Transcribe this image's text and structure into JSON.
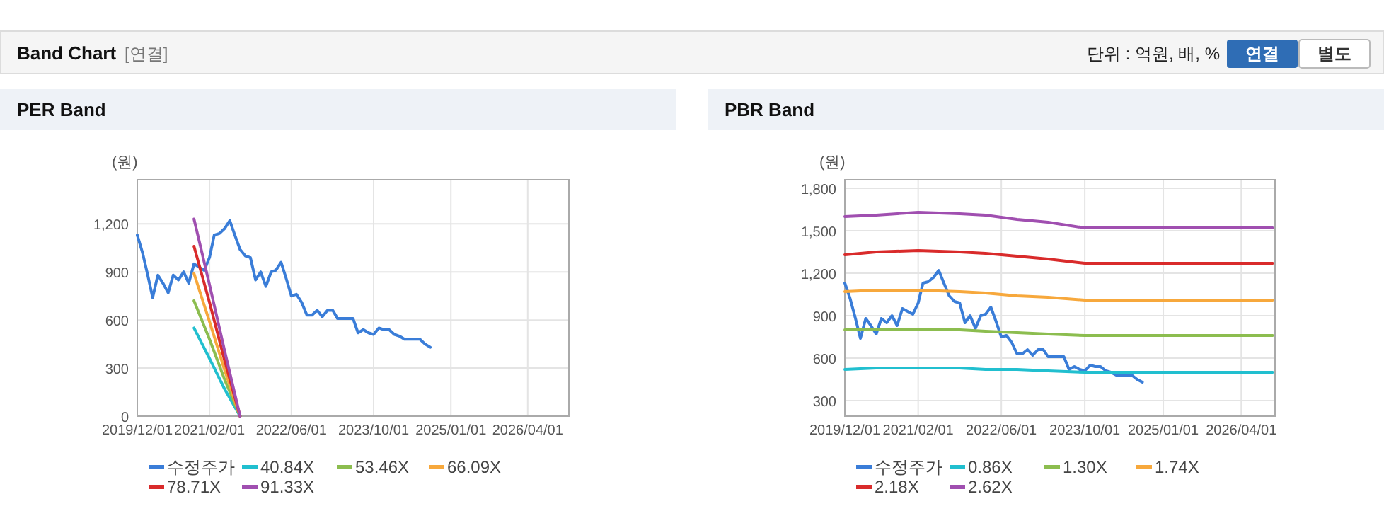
{
  "chart_data": [
    {
      "type": "other",
      "title": "Band Chart",
      "annotations": [
        "[연결]",
        "단위 : 억원, 배, %",
        "연결",
        "별도"
      ]
    },
    {
      "type": "line",
      "title": "PER Band",
      "ylabel": "(원)",
      "grid": true,
      "legend": "bottom",
      "marker": "none",
      "xlim": [
        "2019-12-01",
        "2026-12-01"
      ],
      "xticks": [
        {
          "value": "2019-12-01",
          "label": "2019/12/01"
        },
        {
          "value": "2021-02-01",
          "label": "2021/02/01"
        },
        {
          "value": "2022-06-01",
          "label": "2022/06/01"
        },
        {
          "value": "2023-10-01",
          "label": "2023/10/01"
        },
        {
          "value": "2025-01-01",
          "label": "2025/01/01"
        },
        {
          "value": "2026-04-01",
          "label": "2026/04/01"
        }
      ],
      "ylim": [
        0,
        1475
      ],
      "yticks": [
        0,
        300,
        600,
        900,
        {
          "value": 1200,
          "label": "1,200"
        }
      ],
      "x": [
        "2019-12",
        "2020-01",
        "2020-02",
        "2020-03",
        "2020-04",
        "2020-05",
        "2020-06",
        "2020-07",
        "2020-08",
        "2020-09",
        "2020-10",
        "2020-11",
        "2020-12",
        "2021-01",
        "2021-02",
        "2021-03",
        "2021-04",
        "2021-05",
        "2021-06",
        "2021-07",
        "2021-08",
        "2021-09",
        "2021-10",
        "2021-11",
        "2021-12",
        "2022-01",
        "2022-02",
        "2022-03",
        "2022-04",
        "2022-05",
        "2022-06",
        "2022-07",
        "2022-08",
        "2022-09",
        "2022-10",
        "2022-11",
        "2022-12",
        "2023-01",
        "2023-02",
        "2023-03",
        "2023-04",
        "2023-05",
        "2023-06",
        "2023-07",
        "2023-08",
        "2023-09",
        "2023-10",
        "2023-11",
        "2023-12",
        "2024-01",
        "2024-02",
        "2024-03",
        "2024-04",
        "2024-05",
        "2024-06",
        "2024-07",
        "2024-08",
        "2024-09"
      ],
      "series": [
        {
          "name": "수정주가",
          "color": "#3a7dd8",
          "values": [
            1130,
            1020,
            880,
            740,
            880,
            830,
            770,
            880,
            850,
            900,
            830,
            950,
            930,
            910,
            990,
            1130,
            1140,
            1170,
            1220,
            1130,
            1040,
            1000,
            990,
            850,
            900,
            810,
            900,
            910,
            960,
            860,
            750,
            760,
            710,
            630,
            630,
            660,
            620,
            660,
            660,
            610,
            610,
            610,
            610,
            520,
            540,
            520,
            510,
            550,
            540,
            540,
            510,
            500,
            480,
            480,
            480,
            480,
            450,
            430
          ]
        },
        {
          "name": "40.84X",
          "color": "#21bfcf",
          "x": [
            "2020-11",
            "2021-02",
            "2021-05",
            "2021-08"
          ],
          "values": [
            550,
            360,
            170,
            0
          ]
        },
        {
          "name": "53.46X",
          "color": "#8cbd4f",
          "x": [
            "2020-11",
            "2021-02",
            "2021-05",
            "2021-08"
          ],
          "values": [
            720,
            480,
            230,
            0
          ]
        },
        {
          "name": "66.09X",
          "color": "#f7a83c",
          "x": [
            "2020-11",
            "2021-02",
            "2021-05",
            "2021-08"
          ],
          "values": [
            890,
            590,
            290,
            0
          ]
        },
        {
          "name": "78.71X",
          "color": "#d92b2b",
          "x": [
            "2020-11",
            "2021-02",
            "2021-05",
            "2021-08"
          ],
          "values": [
            1060,
            710,
            350,
            0
          ]
        },
        {
          "name": "91.33X",
          "color": "#a04fb0",
          "x": [
            "2020-11",
            "2021-02",
            "2021-05",
            "2021-08"
          ],
          "values": [
            1230,
            820,
            410,
            0
          ]
        }
      ]
    },
    {
      "type": "line",
      "title": "PBR Band",
      "ylabel": "(원)",
      "grid": true,
      "legend": "bottom",
      "marker": "none",
      "xlim": [
        "2019-12-01",
        "2026-10-15"
      ],
      "xticks": [
        {
          "value": "2019-12-01",
          "label": "2019/12/01"
        },
        {
          "value": "2021-02-01",
          "label": "2021/02/01"
        },
        {
          "value": "2022-06-01",
          "label": "2022/06/01"
        },
        {
          "value": "2023-10-01",
          "label": "2023/10/01"
        },
        {
          "value": "2025-01-01",
          "label": "2025/01/01"
        },
        {
          "value": "2026-04-01",
          "label": "2026/04/01"
        }
      ],
      "ylim": [
        190,
        1860
      ],
      "yticks": [
        300,
        600,
        900,
        {
          "value": 1200,
          "label": "1,200"
        },
        {
          "value": 1500,
          "label": "1,500"
        },
        {
          "value": 1800,
          "label": "1,800"
        }
      ],
      "x": [
        "2019-12",
        "2020-01",
        "2020-02",
        "2020-03",
        "2020-04",
        "2020-05",
        "2020-06",
        "2020-07",
        "2020-08",
        "2020-09",
        "2020-10",
        "2020-11",
        "2020-12",
        "2021-01",
        "2021-02",
        "2021-03",
        "2021-04",
        "2021-05",
        "2021-06",
        "2021-07",
        "2021-08",
        "2021-09",
        "2021-10",
        "2021-11",
        "2021-12",
        "2022-01",
        "2022-02",
        "2022-03",
        "2022-04",
        "2022-05",
        "2022-06",
        "2022-07",
        "2022-08",
        "2022-09",
        "2022-10",
        "2022-11",
        "2022-12",
        "2023-01",
        "2023-02",
        "2023-03",
        "2023-04",
        "2023-05",
        "2023-06",
        "2023-07",
        "2023-08",
        "2023-09",
        "2023-10",
        "2023-11",
        "2023-12",
        "2024-01",
        "2024-02",
        "2024-03",
        "2024-04",
        "2024-05",
        "2024-06",
        "2024-07",
        "2024-08",
        "2024-09"
      ],
      "series": [
        {
          "name": "수정주가",
          "color": "#3a7dd8",
          "values": [
            1130,
            1020,
            880,
            740,
            880,
            830,
            770,
            880,
            850,
            900,
            830,
            950,
            930,
            910,
            990,
            1130,
            1140,
            1170,
            1220,
            1130,
            1040,
            1000,
            990,
            850,
            900,
            810,
            900,
            910,
            960,
            860,
            750,
            760,
            710,
            630,
            630,
            660,
            620,
            660,
            660,
            610,
            610,
            610,
            610,
            520,
            540,
            520,
            510,
            550,
            540,
            540,
            510,
            500,
            480,
            480,
            480,
            480,
            450,
            430
          ]
        },
        {
          "name": "0.86X",
          "color": "#21bfcf",
          "x": [
            "2019-12",
            "2020-06",
            "2021-02",
            "2021-10",
            "2022-03",
            "2022-09",
            "2023-03",
            "2023-10",
            "2026-10"
          ],
          "values": [
            520,
            530,
            530,
            530,
            520,
            520,
            510,
            500,
            500
          ]
        },
        {
          "name": "1.30X",
          "color": "#8cbd4f",
          "x": [
            "2019-12",
            "2020-06",
            "2021-02",
            "2021-10",
            "2022-03",
            "2022-09",
            "2023-03",
            "2023-10",
            "2026-10"
          ],
          "values": [
            800,
            800,
            800,
            800,
            790,
            780,
            770,
            760,
            760
          ]
        },
        {
          "name": "1.74X",
          "color": "#f7a83c",
          "x": [
            "2019-12",
            "2020-06",
            "2021-02",
            "2021-10",
            "2022-03",
            "2022-09",
            "2023-03",
            "2023-10",
            "2026-10"
          ],
          "values": [
            1070,
            1080,
            1080,
            1070,
            1060,
            1040,
            1030,
            1010,
            1010
          ]
        },
        {
          "name": "2.18X",
          "color": "#d92b2b",
          "x": [
            "2019-12",
            "2020-06",
            "2021-02",
            "2021-10",
            "2022-03",
            "2022-09",
            "2023-03",
            "2023-10",
            "2026-10"
          ],
          "values": [
            1330,
            1350,
            1360,
            1350,
            1340,
            1320,
            1300,
            1270,
            1270
          ]
        },
        {
          "name": "2.62X",
          "color": "#a04fb0",
          "x": [
            "2019-12",
            "2020-06",
            "2021-02",
            "2021-10",
            "2022-03",
            "2022-09",
            "2023-03",
            "2023-10",
            "2026-10"
          ],
          "values": [
            1600,
            1610,
            1630,
            1620,
            1610,
            1580,
            1560,
            1520,
            1520
          ]
        }
      ]
    }
  ]
}
